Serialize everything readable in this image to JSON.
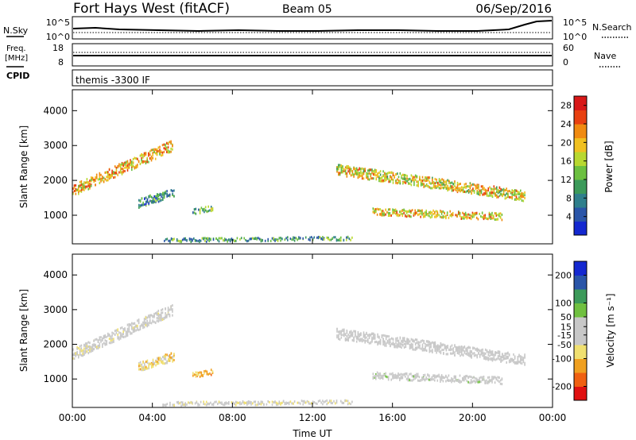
{
  "header": {
    "station": "Fort Hays West (fitACF)",
    "beam": "Beam 05",
    "date": "06/Sep/2016"
  },
  "strips": {
    "nsky_label": "N.Sky",
    "nsky_ticks": [
      "10^5",
      "10^0"
    ],
    "nsearch_label": "N.Search",
    "nsearch_ticks": [
      "10^5",
      "10^0"
    ],
    "freq_label": "Freq.",
    "freq_unit": "[MHz]",
    "freq_ticks": [
      "18",
      "8"
    ],
    "nave_label": "Nave",
    "nave_ticks": [
      "60",
      "0"
    ],
    "cpid_label": "CPID",
    "cpid_value": "themis -3300 IF"
  },
  "chart_data": [
    {
      "type": "heatmap",
      "panel": "power",
      "ylabel": "Slant Range [km]",
      "xlabel": "",
      "x_ticks": [
        "00:00",
        "04:00",
        "08:00",
        "12:00",
        "16:00",
        "20:00",
        "00:00"
      ],
      "x_tick_hours": [
        0,
        4,
        8,
        12,
        16,
        20,
        24
      ],
      "y_ticks": [
        1000,
        2000,
        3000,
        4000
      ],
      "xlim": [
        0,
        24
      ],
      "ylim": [
        180,
        4600
      ],
      "colorbar": {
        "label": "Power [dB]",
        "ticks": [
          "28",
          "24",
          "20",
          "16",
          "12",
          "8",
          "4"
        ],
        "tick_values": [
          28,
          24,
          20,
          16,
          12,
          8,
          4
        ],
        "range": [
          0,
          30
        ],
        "colors": [
          "#1428d0",
          "#2a55a8",
          "#2f7f8c",
          "#3c9a5a",
          "#6cc040",
          "#b8d830",
          "#f0c020",
          "#f08a10",
          "#e84010",
          "#d81818"
        ]
      },
      "regions": [
        {
          "name": "early-arc",
          "t0": 0.0,
          "t1": 5.0,
          "r_start": 1700,
          "r_end": 3000,
          "width": 320,
          "value": 20
        },
        {
          "name": "morning-patch",
          "t0": 3.3,
          "t1": 5.1,
          "r_start": 1350,
          "r_end": 1650,
          "width": 260,
          "value": 9
        },
        {
          "name": "morning-patch-2",
          "t0": 6.0,
          "t1": 7.0,
          "r_start": 1100,
          "r_end": 1200,
          "width": 150,
          "value": 12
        },
        {
          "name": "ground-band",
          "t0": 4.5,
          "t1": 14.0,
          "r_start": 280,
          "r_end": 330,
          "width": 110,
          "value": 10
        },
        {
          "name": "evening-band",
          "t0": 13.2,
          "t1": 22.6,
          "r_start": 2300,
          "r_end": 1550,
          "width": 300,
          "value": 18
        },
        {
          "name": "evening-lower",
          "t0": 15.0,
          "t1": 21.5,
          "r_start": 1100,
          "r_end": 950,
          "width": 200,
          "value": 19
        }
      ]
    },
    {
      "type": "heatmap",
      "panel": "velocity",
      "ylabel": "Slant Range [km]",
      "xlabel": "Time UT",
      "x_ticks": [
        "00:00",
        "04:00",
        "08:00",
        "12:00",
        "16:00",
        "20:00",
        "00:00"
      ],
      "x_tick_hours": [
        0,
        4,
        8,
        12,
        16,
        20,
        24
      ],
      "y_ticks": [
        1000,
        2000,
        3000,
        4000
      ],
      "xlim": [
        0,
        24
      ],
      "ylim": [
        180,
        4600
      ],
      "colorbar": {
        "label": "Velocity [m s⁻¹]",
        "ticks": [
          "200",
          "100",
          "50",
          "15",
          "-15",
          "-50",
          "-100",
          "-200"
        ],
        "tick_values": [
          200,
          100,
          50,
          15,
          -15,
          -50,
          -100,
          -200
        ],
        "range": [
          -250,
          250
        ],
        "colors": [
          "#e01010",
          "#f06010",
          "#f0a020",
          "#f0e070",
          "#c8c8c8",
          "#c8c8c8",
          "#70c040",
          "#3c9a5a",
          "#2a55a8",
          "#1428d0"
        ]
      },
      "regions": [
        {
          "name": "early-arc",
          "t0": 0.0,
          "t1": 5.0,
          "r_start": 1700,
          "r_end": 3000,
          "width": 320,
          "value": -10
        },
        {
          "name": "morning-patch",
          "t0": 3.3,
          "t1": 5.1,
          "r_start": 1350,
          "r_end": 1650,
          "width": 260,
          "value": -70
        },
        {
          "name": "morning-patch-2",
          "t0": 6.0,
          "t1": 7.0,
          "r_start": 1100,
          "r_end": 1200,
          "width": 150,
          "value": -110
        },
        {
          "name": "ground-band",
          "t0": 4.5,
          "t1": 14.0,
          "r_start": 280,
          "r_end": 330,
          "width": 110,
          "value": -30
        },
        {
          "name": "evening-band",
          "t0": 13.2,
          "t1": 22.6,
          "r_start": 2300,
          "r_end": 1550,
          "width": 300,
          "value": 0
        },
        {
          "name": "evening-lower",
          "t0": 15.0,
          "t1": 21.5,
          "r_start": 1100,
          "r_end": 950,
          "width": 200,
          "value": 5
        }
      ]
    }
  ]
}
